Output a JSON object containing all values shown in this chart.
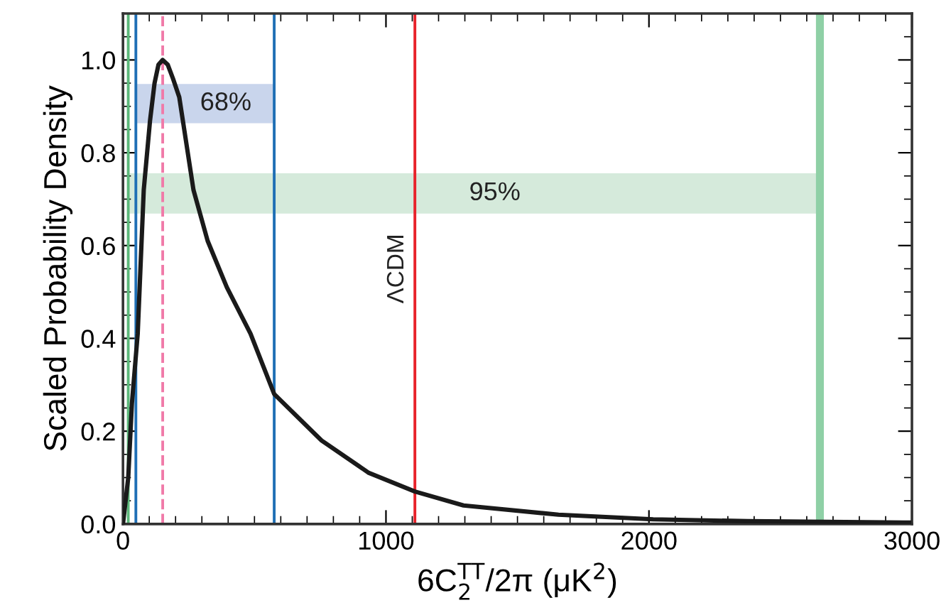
{
  "chart_data": {
    "type": "line",
    "xlabel": "6C$^{TT}$$_{2}$/2π (μK$^{2}$)",
    "ylabel": "Scaled Probability Density",
    "x": [
      0,
      20,
      34,
      56,
      79,
      103,
      120,
      135,
      151,
      170,
      190,
      214,
      268,
      322,
      395,
      485,
      575,
      755,
      935,
      1110,
      1295,
      1656,
      2016,
      2377,
      2990
    ],
    "series": [
      {
        "color": "#1a1a1a",
        "values": [
          0,
          0.1,
          0.26,
          0.41,
          0.72,
          0.87,
          0.95,
          0.99,
          1.0,
          0.99,
          0.96,
          0.92,
          0.72,
          0.61,
          0.51,
          0.41,
          0.28,
          0.18,
          0.11,
          0.07,
          0.04,
          0.02,
          0.01,
          0.006,
          0.003
        ]
      }
    ],
    "xlim": [
      0,
      3000
    ],
    "xticks": [
      0,
      1000,
      2000,
      3000
    ],
    "ylim": [
      0,
      1.1
    ],
    "yticks": [
      {
        "value": 0,
        "label": "0.0"
      },
      {
        "value": 0.2,
        "label": "0.2"
      },
      {
        "value": 0.4,
        "label": "0.4"
      },
      {
        "value": 0.6,
        "label": "0.6"
      },
      {
        "value": 0.8,
        "label": "0.8"
      },
      {
        "value": 1.0,
        "label": "1.0"
      }
    ],
    "bands": [
      {
        "axis": "x",
        "from": 49,
        "to": 575,
        "label": "68%",
        "color": "#c9d5ec"
      },
      {
        "axis": "x",
        "from": 20,
        "to": 2650,
        "label": "95%",
        "color": "#d5eadb"
      }
    ],
    "ref_lines": [
      {
        "axis": "x",
        "value": 20,
        "color": "#5cb87a"
      },
      {
        "axis": "x",
        "value": 49,
        "color": "#1f6fb5"
      },
      {
        "axis": "x",
        "value": 151,
        "color": "#f07aa8",
        "line_style": "dashed"
      },
      {
        "axis": "x",
        "value": 575,
        "color": "#1f6fb5"
      },
      {
        "axis": "x",
        "value": 1110,
        "color": "#e8222a",
        "label": "ΛCDM"
      },
      {
        "axis": "x",
        "value": 2650,
        "color": "#8fd0a6"
      }
    ],
    "grid": false,
    "legend": false,
    "marker": "none",
    "line_style": "solid"
  }
}
